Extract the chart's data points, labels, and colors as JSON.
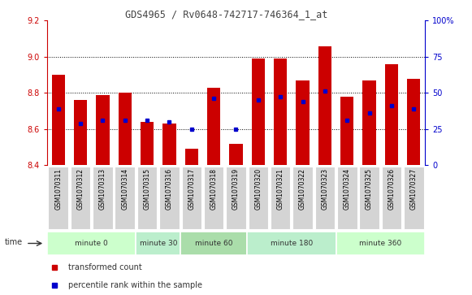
{
  "title": "GDS4965 / Rv0648-742717-746364_1_at",
  "samples": [
    "GSM1070311",
    "GSM1070312",
    "GSM1070313",
    "GSM1070314",
    "GSM1070315",
    "GSM1070316",
    "GSM1070317",
    "GSM1070318",
    "GSM1070319",
    "GSM1070320",
    "GSM1070321",
    "GSM1070322",
    "GSM1070323",
    "GSM1070324",
    "GSM1070325",
    "GSM1070326",
    "GSM1070327"
  ],
  "bar_values": [
    8.9,
    8.76,
    8.79,
    8.8,
    8.64,
    8.63,
    8.49,
    8.83,
    8.52,
    8.99,
    8.99,
    8.87,
    9.06,
    8.78,
    8.87,
    8.96,
    8.88
  ],
  "percentile_values": [
    8.71,
    8.63,
    8.65,
    8.65,
    8.65,
    8.64,
    8.6,
    8.77,
    8.6,
    8.76,
    8.78,
    8.75,
    8.81,
    8.65,
    8.69,
    8.73,
    8.71
  ],
  "bar_color": "#cc0000",
  "percentile_color": "#0000cc",
  "ylim_left": [
    8.4,
    9.2
  ],
  "ylim_right": [
    0,
    100
  ],
  "yticks_left": [
    8.4,
    8.6,
    8.8,
    9.0,
    9.2
  ],
  "yticks_right": [
    0,
    25,
    50,
    75,
    100
  ],
  "ytick_right_labels": [
    "0",
    "25",
    "50",
    "75",
    "100%"
  ],
  "grid_values": [
    8.6,
    8.8,
    9.0
  ],
  "groups": [
    {
      "label": "minute 0",
      "indices": [
        0,
        1,
        2,
        3
      ],
      "color": "#ccffcc"
    },
    {
      "label": "minute 30",
      "indices": [
        4,
        5
      ],
      "color": "#bbeecc"
    },
    {
      "label": "minute 60",
      "indices": [
        6,
        7,
        8
      ],
      "color": "#aaddaa"
    },
    {
      "label": "minute 180",
      "indices": [
        9,
        10,
        11,
        12
      ],
      "color": "#bbeecc"
    },
    {
      "label": "minute 360",
      "indices": [
        13,
        14,
        15,
        16
      ],
      "color": "#ccffcc"
    }
  ],
  "bar_bottom": 8.4,
  "xlabel_color": "#cc0000",
  "ylabel_left_color": "#cc0000",
  "ylabel_right_color": "#0000cc",
  "title_color": "#444444",
  "bg_color": "#ffffff",
  "label_bg_color": "#d4d4d4"
}
